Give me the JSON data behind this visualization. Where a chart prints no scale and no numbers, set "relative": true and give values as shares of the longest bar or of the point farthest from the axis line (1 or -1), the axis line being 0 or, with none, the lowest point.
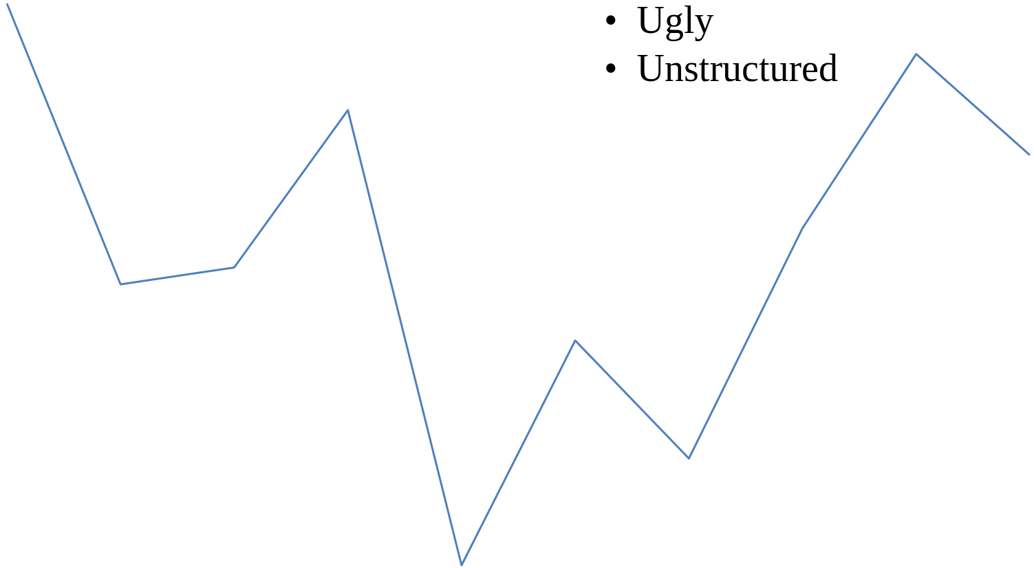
{
  "chart_data": {
    "type": "line",
    "relative": true,
    "categories": [
      null,
      null,
      null,
      null,
      null,
      null,
      null,
      null,
      null,
      null
    ],
    "series": [
      {
        "color": "#4f81bd",
        "values": [
          1,
          0.5,
          0.53,
          0.81,
          0,
          0.4,
          0.19,
          0.6,
          0.91,
          0.73
        ]
      }
    ],
    "annotations": [
      "•  Ugly",
      "•  Unstructured"
    ]
  }
}
